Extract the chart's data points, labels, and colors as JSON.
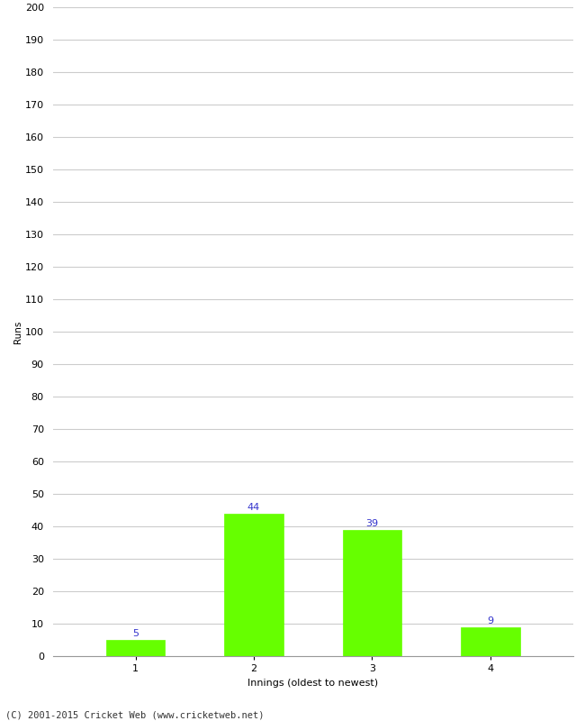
{
  "innings": [
    1,
    2,
    3,
    4
  ],
  "runs": [
    5,
    44,
    39,
    9
  ],
  "bar_color": "#66ff00",
  "bar_edge_color": "#66ff00",
  "label_color": "#3333cc",
  "xlabel": "Innings (oldest to newest)",
  "ylabel": "Runs",
  "ylim": [
    0,
    200
  ],
  "ytick_step": 10,
  "background_color": "#ffffff",
  "grid_color": "#cccccc",
  "footer_text": "(C) 2001-2015 Cricket Web (www.cricketweb.net)",
  "label_fontsize": 8,
  "axis_fontsize": 8,
  "footer_fontsize": 7.5,
  "ylabel_fontsize": 7.5,
  "bar_width": 0.5
}
